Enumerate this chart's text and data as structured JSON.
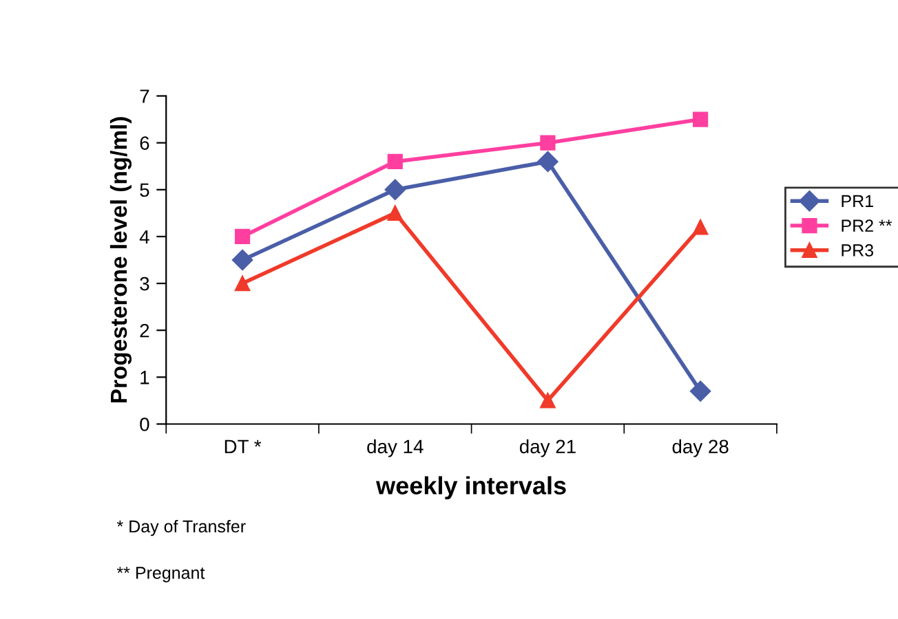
{
  "chart_data": {
    "type": "line",
    "xlabel": "weekly intervals",
    "ylabel": "Progesterone level (ng/ml)",
    "categories": [
      "DT *",
      "day 14",
      "day 21",
      "day 28"
    ],
    "series": [
      {
        "name": "PR1",
        "color": "#4a5ea8",
        "marker": "diamond",
        "values": [
          3.5,
          5.0,
          5.6,
          0.7
        ]
      },
      {
        "name": "PR2 **",
        "color": "#ff3fa0",
        "marker": "square",
        "values": [
          4.0,
          5.6,
          6.0,
          6.5
        ]
      },
      {
        "name": "PR3",
        "color": "#f03a2a",
        "marker": "triangle",
        "values": [
          3.0,
          4.5,
          0.5,
          4.2
        ]
      }
    ],
    "ylim": [
      0,
      7
    ],
    "yticks": [
      0,
      1,
      2,
      3,
      4,
      5,
      6,
      7
    ],
    "grid": false,
    "legend": "right",
    "line_style": "solid",
    "annotations": [
      "* Day of Transfer",
      "** Pregnant"
    ]
  }
}
